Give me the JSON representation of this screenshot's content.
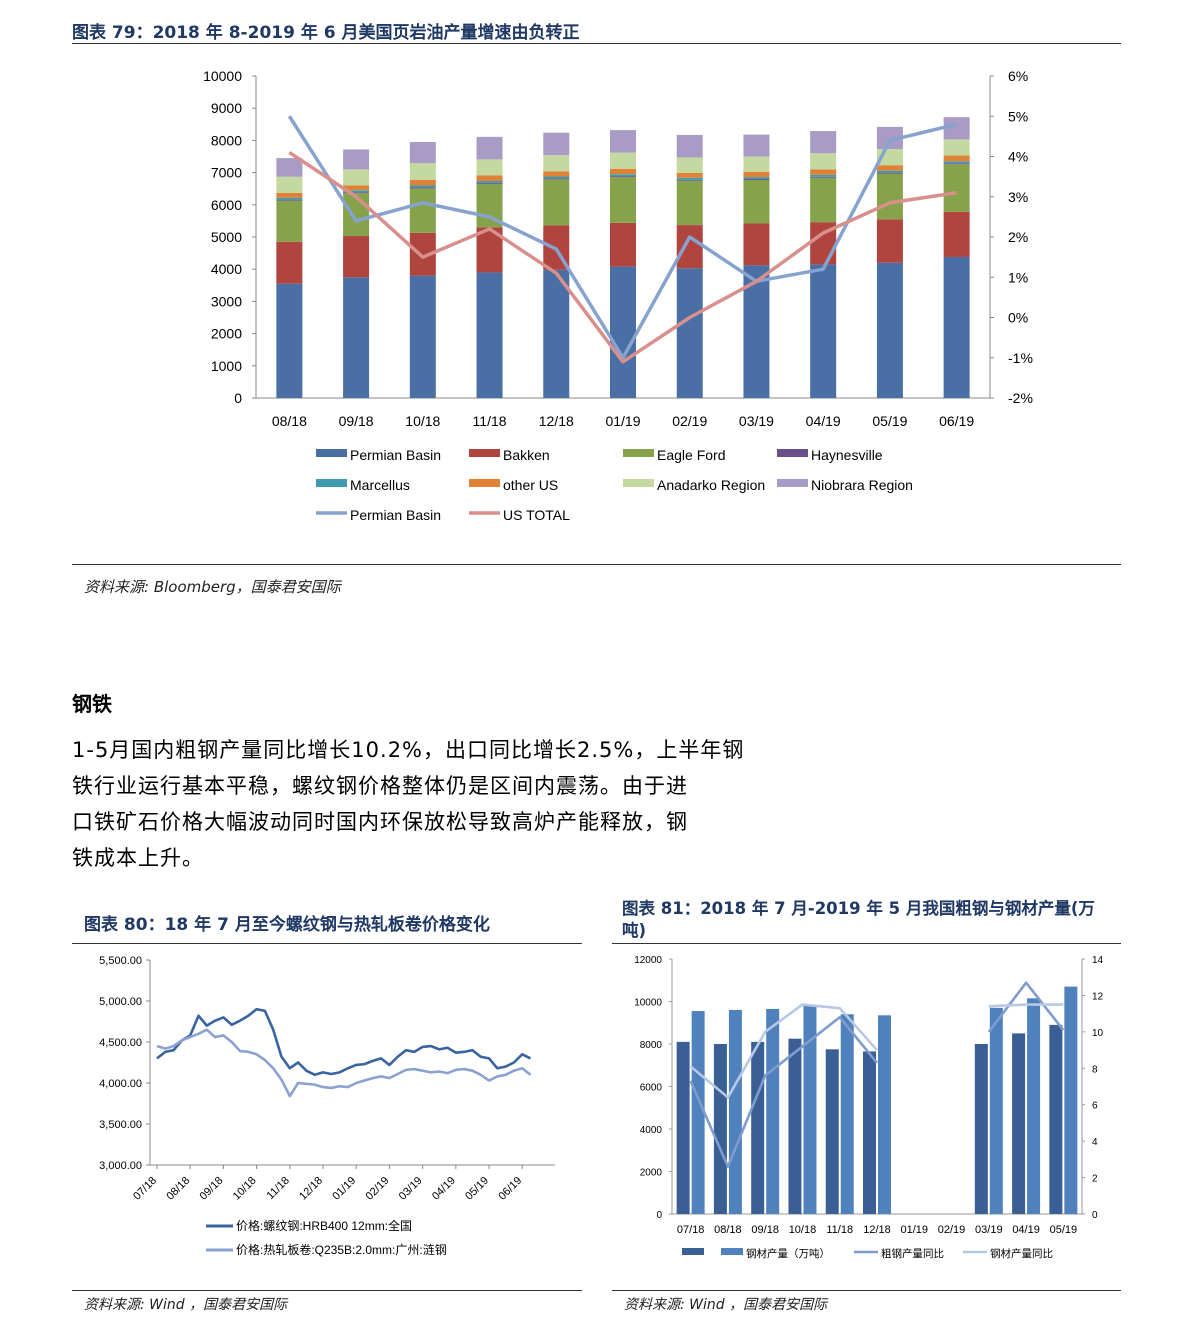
{
  "fig79": {
    "title": "图表 79：2018 年 8-2019 年 6 月美国页岩油产量增速由负转正",
    "source": "资料来源: Bloomberg，国泰君安国际"
  },
  "section": {
    "heading": "钢铁",
    "paragraph_lines": [
      "1-5月国内粗钢产量同比增长10.2%，出口同比增长2.5%，上半年钢",
      "铁行业运行基本平稳，螺纹钢价格整体仍是区间内震荡。由于进",
      "口铁矿石价格大幅波动同时国内环保放松导致高炉产能释放，钢",
      "铁成本上升。"
    ]
  },
  "fig80": {
    "title": "图表 80：18 年 7 月至今螺纹钢与热轧板卷价格变化",
    "source": "资料来源: Wind   ，国泰君安国际"
  },
  "fig81": {
    "title_line1": "图表 81：2018 年 7 月-2019 年 5 月我国粗钢与钢材产量(万",
    "title_line2": "吨)",
    "source": "资料来源: Wind   ，国泰君安国际"
  },
  "colors": {
    "title_blue": "#1f3864",
    "permian": "#4a6fa5",
    "bakken": "#b0443f",
    "eagle": "#86a24a",
    "haynes": "#6a4f8a",
    "marcellus": "#3f9bb0",
    "other": "#e08236",
    "anadarko": "#c4d9a0",
    "niobrara": "#a89cc6",
    "line_permian": "#86a3cf",
    "line_total": "#d98f8c",
    "rebar": "#3a64a0",
    "hrc": "#8aa1d2",
    "crude_bar": "#3a5f95",
    "steel_bar": "#4f81bd",
    "crude_line": "#7f9ccf",
    "steel_line": "#b7c8e6"
  },
  "chart_data": [
    {
      "id": "us-shale-output",
      "type": "bar",
      "stacked": true,
      "categories": [
        "08/18",
        "09/18",
        "10/18",
        "11/18",
        "12/18",
        "01/19",
        "02/19",
        "03/19",
        "04/19",
        "05/19",
        "06/19"
      ],
      "ylim": [
        0,
        10000
      ],
      "yticks": [
        "10000",
        "9000",
        "8000",
        "7000",
        "6000",
        "5000",
        "4000",
        "3000",
        "2000",
        "1000",
        "0"
      ],
      "y2lim": [
        -2,
        6
      ],
      "y2ticks": [
        "6%",
        "5%",
        "4%",
        "3%",
        "2%",
        "1%",
        "0%",
        "-1%",
        "-2%"
      ],
      "series": [
        {
          "name": "Permian Basin",
          "color_key": "permian",
          "values": [
            3550,
            3750,
            3800,
            3900,
            3980,
            4080,
            4030,
            4120,
            4150,
            4200,
            4380
          ]
        },
        {
          "name": "Bakken",
          "color_key": "bakken",
          "values": [
            1300,
            1280,
            1330,
            1400,
            1380,
            1360,
            1340,
            1300,
            1310,
            1350,
            1400
          ]
        },
        {
          "name": "Eagle Ford",
          "color_key": "eagle",
          "values": [
            1280,
            1330,
            1380,
            1350,
            1430,
            1420,
            1380,
            1350,
            1380,
            1420,
            1480
          ]
        },
        {
          "name": "Haynesville",
          "color_key": "haynes",
          "values": [
            30,
            30,
            30,
            30,
            30,
            30,
            30,
            30,
            30,
            30,
            30
          ]
        },
        {
          "name": "Marcellus",
          "color_key": "marcellus",
          "values": [
            60,
            60,
            60,
            60,
            60,
            60,
            60,
            60,
            60,
            60,
            60
          ]
        },
        {
          "name": "other US",
          "color_key": "other",
          "values": [
            150,
            150,
            170,
            170,
            160,
            170,
            150,
            160,
            170,
            170,
            180
          ]
        },
        {
          "name": "Anadarko Region",
          "color_key": "anadarko",
          "values": [
            500,
            500,
            520,
            500,
            500,
            500,
            480,
            480,
            500,
            500,
            500
          ]
        },
        {
          "name": "Niobrara Region",
          "color_key": "niobrara",
          "values": [
            580,
            620,
            660,
            700,
            700,
            700,
            700,
            680,
            690,
            690,
            690
          ]
        }
      ],
      "lines": [
        {
          "name": "Permian Basin",
          "color_key": "line_permian",
          "axis": "right",
          "values": [
            5.0,
            2.4,
            2.85,
            2.5,
            1.7,
            -1.0,
            2.0,
            0.9,
            1.2,
            4.4,
            4.8
          ]
        },
        {
          "name": "US TOTAL",
          "color_key": "line_total",
          "axis": "right",
          "values": [
            4.1,
            3.0,
            1.5,
            2.2,
            1.1,
            -1.1,
            0.0,
            0.9,
            2.1,
            2.85,
            3.1
          ]
        }
      ]
    },
    {
      "id": "rebar-hrc-prices",
      "type": "line",
      "x_tick_labels": [
        "07/18",
        "08/18",
        "09/18",
        "10/18",
        "11/18",
        "12/18",
        "01/19",
        "02/19",
        "03/19",
        "04/19",
        "05/19",
        "06/19"
      ],
      "ylim": [
        3000,
        5500
      ],
      "yticks": [
        "5,500.00",
        "5,000.00",
        "4,500.00",
        "4,000.00",
        "3,500.00",
        "3,000.00"
      ],
      "x_months": [
        0,
        0.25,
        0.5,
        0.75,
        1,
        1.25,
        1.5,
        1.75,
        2,
        2.25,
        2.5,
        2.75,
        3,
        3.25,
        3.5,
        3.75,
        4,
        4.25,
        4.5,
        4.75,
        5,
        5.25,
        5.5,
        5.75,
        6,
        6.25,
        6.5,
        6.75,
        7,
        7.25,
        7.5,
        7.75,
        8,
        8.25,
        8.5,
        8.75,
        9,
        9.25,
        9.5,
        9.75,
        10,
        10.25,
        10.5,
        10.75,
        11,
        11.25
      ],
      "series": [
        {
          "name": "价格:螺纹钢:HRB400 12mm:全国",
          "color_key": "rebar",
          "values": [
            4300,
            4380,
            4400,
            4520,
            4580,
            4820,
            4700,
            4760,
            4800,
            4710,
            4760,
            4820,
            4900,
            4880,
            4650,
            4320,
            4180,
            4250,
            4150,
            4100,
            4130,
            4110,
            4130,
            4180,
            4220,
            4230,
            4270,
            4300,
            4220,
            4320,
            4400,
            4380,
            4440,
            4450,
            4410,
            4430,
            4370,
            4380,
            4400,
            4320,
            4300,
            4180,
            4200,
            4250,
            4350,
            4300
          ]
        },
        {
          "name": "价格:热轧板卷:Q235B:2.0mm:广州:涟钢",
          "color_key": "hrc",
          "values": [
            4450,
            4420,
            4450,
            4520,
            4560,
            4600,
            4650,
            4560,
            4580,
            4500,
            4390,
            4380,
            4350,
            4280,
            4180,
            4040,
            3840,
            4000,
            3990,
            3980,
            3950,
            3940,
            3960,
            3950,
            4000,
            4030,
            4060,
            4080,
            4060,
            4110,
            4160,
            4170,
            4150,
            4130,
            4140,
            4120,
            4160,
            4170,
            4150,
            4100,
            4030,
            4080,
            4100,
            4150,
            4180,
            4100
          ]
        }
      ]
    },
    {
      "id": "crude-steel-output",
      "type": "bar",
      "categories": [
        "07/18",
        "08/18",
        "09/18",
        "10/18",
        "11/18",
        "12/18",
        "01/19",
        "02/19",
        "03/19",
        "04/19",
        "05/19"
      ],
      "ylim": [
        0,
        12000
      ],
      "yticks": [
        "12000",
        "10000",
        "8000",
        "6000",
        "4000",
        "2000",
        "0"
      ],
      "y2lim": [
        0,
        14
      ],
      "y2ticks": [
        "14",
        "12",
        "10",
        "8",
        "6",
        "4",
        "2",
        "0"
      ],
      "series": [
        {
          "name": "",
          "color_key": "crude_bar",
          "values": [
            8100,
            8000,
            8100,
            8250,
            7750,
            7650,
            null,
            null,
            8000,
            8500,
            8900
          ]
        },
        {
          "name": "钢材产量（万吨）",
          "color_key": "steel_bar",
          "values": [
            9550,
            9600,
            9650,
            9800,
            9400,
            9350,
            null,
            null,
            9700,
            10150,
            10700
          ]
        }
      ],
      "lines": [
        {
          "name": "粗钢产量同比",
          "color_key": "crude_line",
          "axis": "right",
          "values": [
            7.3,
            2.6,
            7.6,
            9.2,
            10.8,
            8.3,
            null,
            null,
            10.0,
            12.7,
            10.1
          ]
        },
        {
          "name": "钢材产量同比",
          "color_key": "steel_line",
          "axis": "right",
          "values": [
            8.1,
            6.4,
            10.0,
            11.5,
            11.3,
            9.0,
            null,
            null,
            11.4,
            11.5,
            11.5
          ]
        }
      ]
    }
  ]
}
